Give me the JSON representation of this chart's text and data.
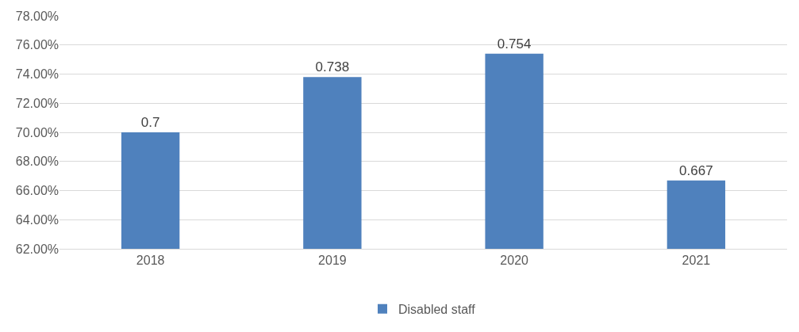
{
  "chart_data": {
    "type": "bar",
    "categories": [
      "2018",
      "2019",
      "2020",
      "2021"
    ],
    "series": [
      {
        "name": "Disabled staff",
        "color": "#4f81bd",
        "values": [
          0.7,
          0.738,
          0.754,
          0.667
        ]
      }
    ],
    "ylim": [
      0.62,
      0.78
    ],
    "yticks": [
      {
        "value": 0.62,
        "label": "62.00%"
      },
      {
        "value": 0.64,
        "label": "64.00%"
      },
      {
        "value": 0.66,
        "label": "66.00%"
      },
      {
        "value": 0.68,
        "label": "68.00%"
      },
      {
        "value": 0.7,
        "label": "70.00%"
      },
      {
        "value": 0.72,
        "label": "72.00%"
      },
      {
        "value": 0.74,
        "label": "74.00%"
      },
      {
        "value": 0.76,
        "label": "76.00%"
      },
      {
        "value": 0.78,
        "label": "78.00%"
      }
    ],
    "grid": "y",
    "legend": "bottom",
    "data_labels": true
  }
}
